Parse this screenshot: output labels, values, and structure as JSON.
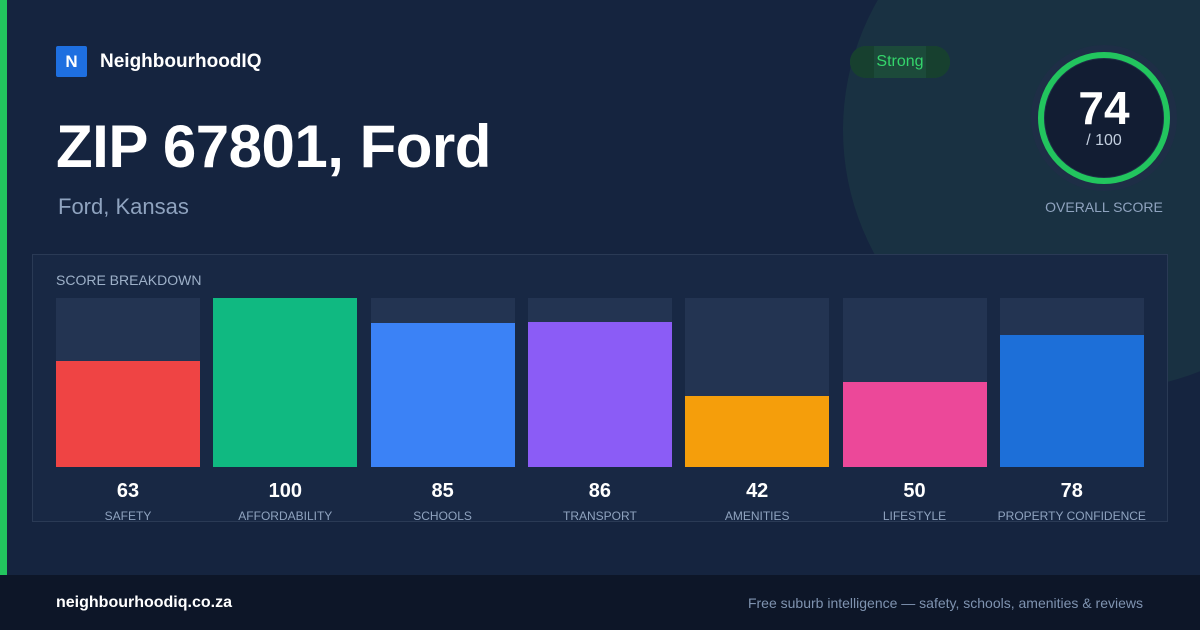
{
  "brand": {
    "logo_letter": "N",
    "name": "NeighbourhoodIQ"
  },
  "header": {
    "title": "ZIP 67801, Ford",
    "subtitle": "Ford, Kansas"
  },
  "badge": {
    "label": "Strong"
  },
  "overall": {
    "score": "74",
    "max_label": "/ 100",
    "label": "OVERALL SCORE",
    "fraction": 0.74
  },
  "colors": {
    "accent": "#22c55e",
    "gauge_track": "#1e2e46"
  },
  "breakdown": {
    "title": "SCORE BREAKDOWN",
    "items": [
      {
        "value": 63,
        "label": "SAFETY",
        "color": "#ef4444"
      },
      {
        "value": 100,
        "label": "AFFORDABILITY",
        "color": "#10b981"
      },
      {
        "value": 85,
        "label": "SCHOOLS",
        "color": "#3b82f6"
      },
      {
        "value": 86,
        "label": "TRANSPORT",
        "color": "#8b5cf6"
      },
      {
        "value": 42,
        "label": "AMENITIES",
        "color": "#f59e0b"
      },
      {
        "value": 50,
        "label": "LIFESTYLE",
        "color": "#ec4899"
      },
      {
        "value": 78,
        "label": "PROPERTY CONFIDENCE",
        "color": "#1d6fd8"
      }
    ]
  },
  "footer": {
    "url": "neighbourhoodiq.co.za",
    "tagline": "Free suburb intelligence — safety, schools, amenities & reviews"
  }
}
